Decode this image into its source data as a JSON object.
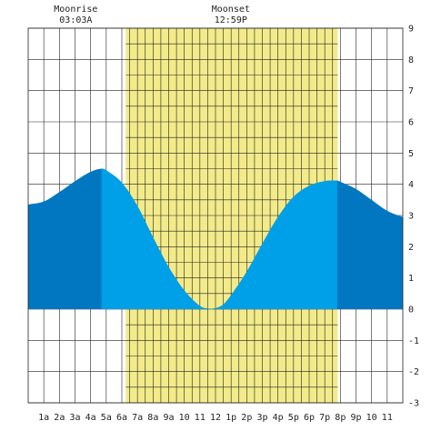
{
  "chart_data": {
    "type": "area",
    "xlim": [
      0,
      24
    ],
    "ylim": [
      -3,
      9
    ],
    "x_tick_labels": [
      "1a",
      "2a",
      "3a",
      "4a",
      "5a",
      "6a",
      "7a",
      "8a",
      "9a",
      "10",
      "11",
      "12",
      "1p",
      "2p",
      "3p",
      "4p",
      "5p",
      "6p",
      "7p",
      "8p",
      "9p",
      "10",
      "11"
    ],
    "y_ticks": [
      -3,
      -2,
      -1,
      0,
      1,
      2,
      3,
      4,
      5,
      6,
      7,
      8,
      9
    ],
    "grid": true,
    "daylight": {
      "start": 6.25,
      "end": 19.83
    },
    "night_color": "#0077c0",
    "day_color": "#00a0e8",
    "daylight_bg_color": "#f3eb8a",
    "annotations": [
      {
        "name": "moonrise",
        "title": "Moonrise",
        "time": "03:03A",
        "x": 3.05
      },
      {
        "name": "moonset",
        "title": "Moonset",
        "time": "12:59P",
        "x": 12.98
      }
    ],
    "series": [
      {
        "x": [
          0,
          1,
          2,
          3,
          4,
          4.7,
          5,
          6,
          7,
          8,
          9,
          10,
          11,
          11.5,
          12,
          12.5,
          13,
          14,
          15,
          16,
          17,
          18,
          19,
          19.8,
          20,
          21,
          22,
          23,
          24
        ],
        "values": [
          3.35,
          3.45,
          3.75,
          4.1,
          4.4,
          4.5,
          4.45,
          4.05,
          3.3,
          2.3,
          1.35,
          0.6,
          0.1,
          0.02,
          0.03,
          0.15,
          0.45,
          1.2,
          2.1,
          2.95,
          3.6,
          3.95,
          4.1,
          4.12,
          4.08,
          3.85,
          3.5,
          3.15,
          2.95
        ]
      }
    ]
  }
}
